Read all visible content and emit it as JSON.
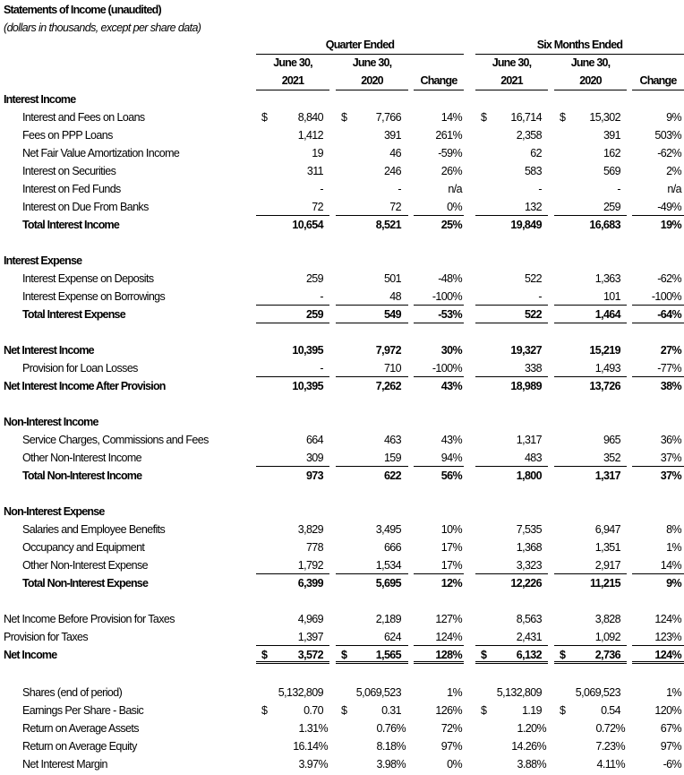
{
  "title": "Statements of Income (unaudited)",
  "subtitle": "(dollars in thousands, except per share data)",
  "groups": [
    "Quarter Ended",
    "Six Months Ended"
  ],
  "col_top": [
    "June 30,",
    "June 30,",
    "",
    "June 30,",
    "June 30,",
    ""
  ],
  "col_bottom": [
    "2021",
    "2020",
    "Change",
    "2021",
    "2020",
    "Change"
  ],
  "rows": [
    {
      "label": "Interest Income",
      "style": "section"
    },
    {
      "label": "Interest and Fees on Loans",
      "style": "item",
      "dollar": true,
      "v": [
        "8,840",
        "7,766",
        "14%",
        "16,714",
        "15,302",
        "9%"
      ]
    },
    {
      "label": "Fees on PPP Loans",
      "style": "item",
      "v": [
        "1,412",
        "391",
        "261%",
        "2,358",
        "391",
        "503%"
      ]
    },
    {
      "label": "Net Fair Value Amortization Income",
      "style": "item",
      "v": [
        "19",
        "46",
        "-59%",
        "62",
        "162",
        "-62%"
      ]
    },
    {
      "label": "Interest on Securities",
      "style": "item",
      "v": [
        "311",
        "246",
        "26%",
        "583",
        "569",
        "2%"
      ]
    },
    {
      "label": "Interest on Fed Funds",
      "style": "item",
      "v": [
        "-",
        "-",
        "n/a",
        "-",
        "-",
        "n/a"
      ]
    },
    {
      "label": "Interest on Due From Banks",
      "style": "item",
      "border": "single",
      "v": [
        "72",
        "72",
        "0%",
        "132",
        "259",
        "-49%"
      ]
    },
    {
      "label": "Total Interest Income",
      "style": "total",
      "v": [
        "10,654",
        "8,521",
        "25%",
        "19,849",
        "16,683",
        "19%"
      ]
    },
    {
      "label": "",
      "style": "blank"
    },
    {
      "label": "Interest Expense",
      "style": "section"
    },
    {
      "label": "Interest Expense on Deposits",
      "style": "item",
      "v": [
        "259",
        "501",
        "-48%",
        "522",
        "1,363",
        "-62%"
      ]
    },
    {
      "label": "Interest Expense on Borrowings",
      "style": "item",
      "border": "single",
      "v": [
        "-",
        "48",
        "-100%",
        "-",
        "101",
        "-100%"
      ]
    },
    {
      "label": "Total Interest Expense",
      "style": "total",
      "border": "single",
      "v": [
        "259",
        "549",
        "-53%",
        "522",
        "1,464",
        "-64%"
      ]
    },
    {
      "label": "",
      "style": "blank"
    },
    {
      "label": "Net Interest Income",
      "style": "section",
      "v": [
        "10,395",
        "7,972",
        "30%",
        "19,327",
        "15,219",
        "27%"
      ]
    },
    {
      "label": "Provision for Loan Losses",
      "style": "item",
      "border": "single",
      "v": [
        "-",
        "710",
        "-100%",
        "338",
        "1,493",
        "-77%"
      ]
    },
    {
      "label": "Net Interest Income After Provision",
      "style": "section",
      "v": [
        "10,395",
        "7,262",
        "43%",
        "18,989",
        "13,726",
        "38%"
      ]
    },
    {
      "label": "",
      "style": "blank"
    },
    {
      "label": "Non-Interest Income",
      "style": "section"
    },
    {
      "label": "Service Charges, Commissions and Fees",
      "style": "item",
      "v": [
        "664",
        "463",
        "43%",
        "1,317",
        "965",
        "36%"
      ]
    },
    {
      "label": "Other Non-Interest Income",
      "style": "item",
      "border": "single",
      "v": [
        "309",
        "159",
        "94%",
        "483",
        "352",
        "37%"
      ]
    },
    {
      "label": "Total Non-Interest Income",
      "style": "total",
      "v": [
        "973",
        "622",
        "56%",
        "1,800",
        "1,317",
        "37%"
      ]
    },
    {
      "label": "",
      "style": "blank"
    },
    {
      "label": "Non-Interest Expense",
      "style": "section"
    },
    {
      "label": "Salaries and Employee Benefits",
      "style": "item",
      "v": [
        "3,829",
        "3,495",
        "10%",
        "7,535",
        "6,947",
        "8%"
      ]
    },
    {
      "label": "Occupancy and Equipment",
      "style": "item",
      "v": [
        "778",
        "666",
        "17%",
        "1,368",
        "1,351",
        "1%"
      ]
    },
    {
      "label": "Other Non-Interest Expense",
      "style": "item",
      "border": "single",
      "v": [
        "1,792",
        "1,534",
        "17%",
        "3,323",
        "2,917",
        "14%"
      ]
    },
    {
      "label": "Total Non-Interest Expense",
      "style": "total",
      "v": [
        "6,399",
        "5,695",
        "12%",
        "12,226",
        "11,215",
        "9%"
      ]
    },
    {
      "label": "",
      "style": "blank"
    },
    {
      "label": "Net Income Before Provision for Taxes",
      "style": "plain",
      "v": [
        "4,969",
        "2,189",
        "127%",
        "8,563",
        "3,828",
        "124%"
      ]
    },
    {
      "label": "Provision for Taxes",
      "style": "plain",
      "border": "single",
      "v": [
        "1,397",
        "624",
        "124%",
        "2,431",
        "1,092",
        "123%"
      ]
    },
    {
      "label": "Net Income",
      "style": "section",
      "dollar": true,
      "border": "double",
      "v": [
        "3,572",
        "1,565",
        "128%",
        "6,132",
        "2,736",
        "124%"
      ]
    },
    {
      "label": "",
      "style": "blank"
    },
    {
      "label": "Shares (end of period)",
      "style": "item",
      "v": [
        "5,132,809",
        "5,069,523",
        "1%",
        "5,132,809",
        "5,069,523",
        "1%"
      ]
    },
    {
      "label": "Earnings Per Share - Basic",
      "style": "item",
      "dollar": true,
      "v": [
        "0.70",
        "0.31",
        "126%",
        "1.19",
        "0.54",
        "120%"
      ]
    },
    {
      "label": "Return on Average Assets",
      "style": "item",
      "pct": true,
      "v": [
        "1.31%",
        "0.76%",
        "72%",
        "1.20%",
        "0.72%",
        "67%"
      ]
    },
    {
      "label": "Return on Average Equity",
      "style": "item",
      "pct": true,
      "v": [
        "16.14%",
        "8.18%",
        "97%",
        "14.26%",
        "7.23%",
        "97%"
      ]
    },
    {
      "label": "Net Interest Margin",
      "style": "item",
      "pct": true,
      "v": [
        "3.97%",
        "3.98%",
        "0%",
        "3.88%",
        "4.11%",
        "-6%"
      ]
    }
  ]
}
